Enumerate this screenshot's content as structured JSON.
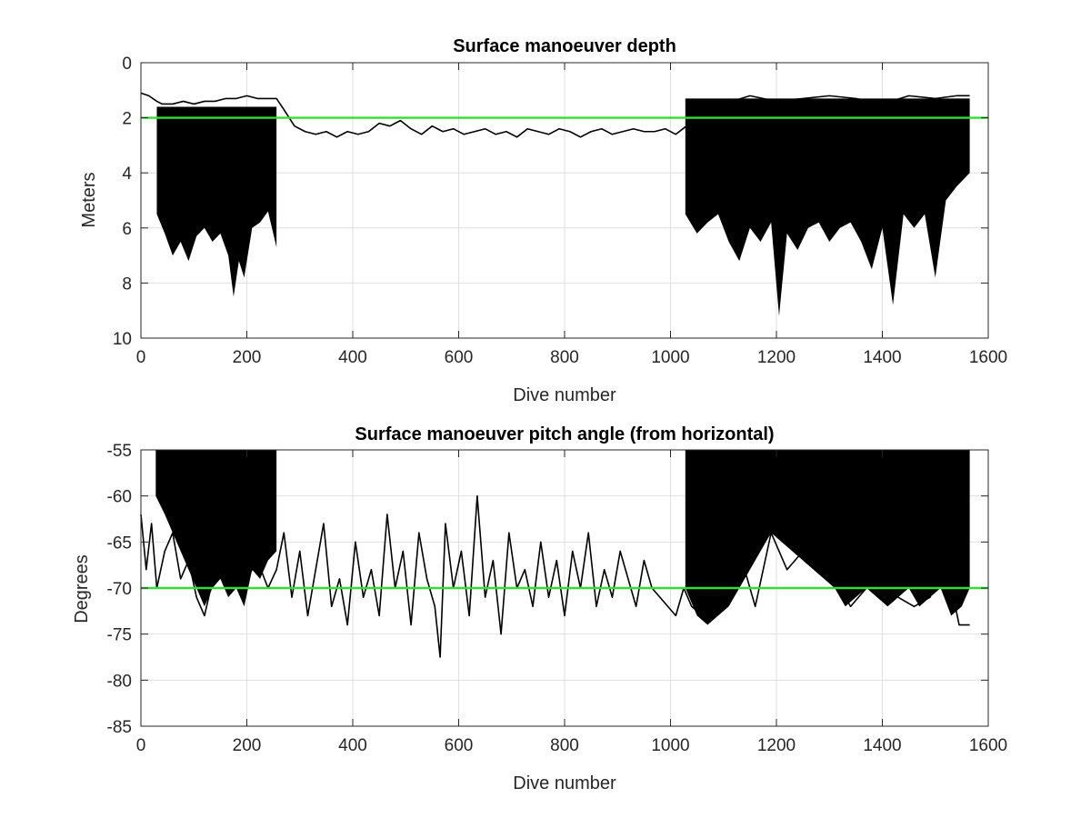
{
  "colors": {
    "reference_line": "#33dd33",
    "signal": "#000000",
    "grid": "#dfdfdf"
  },
  "chart_data": [
    {
      "type": "line",
      "title": "Surface manoeuver depth",
      "xlabel": "Dive number",
      "ylabel": "Meters",
      "xlim": [
        0,
        1600
      ],
      "ylim": [
        0,
        10
      ],
      "y_reversed": true,
      "grid": true,
      "xticks": [
        "0",
        "200",
        "400",
        "600",
        "800",
        "1000",
        "1200",
        "1400",
        "1600"
      ],
      "yticks": [
        "0",
        "2",
        "4",
        "6",
        "8",
        "10"
      ],
      "reference_line": {
        "y": 2.0,
        "color": "#33dd33"
      },
      "series": [
        {
          "x": [
            0,
            15,
            30,
            40,
            60,
            80,
            100,
            120,
            140,
            160,
            180,
            200,
            220,
            240,
            256,
            270,
            290,
            310,
            330,
            350,
            370,
            390,
            410,
            430,
            450,
            470,
            490,
            510,
            530,
            550,
            570,
            590,
            610,
            630,
            650,
            670,
            690,
            710,
            730,
            750,
            770,
            790,
            810,
            830,
            850,
            870,
            890,
            910,
            930,
            950,
            970,
            990,
            1010,
            1030,
            1060,
            1100,
            1150,
            1200,
            1250,
            1300,
            1350,
            1400,
            1450,
            1500,
            1540,
            1565
          ],
          "values": [
            1.1,
            1.2,
            1.4,
            1.5,
            1.5,
            1.4,
            1.5,
            1.4,
            1.4,
            1.3,
            1.3,
            1.2,
            1.3,
            1.3,
            1.3,
            1.7,
            2.3,
            2.5,
            2.6,
            2.5,
            2.7,
            2.5,
            2.6,
            2.5,
            2.2,
            2.3,
            2.1,
            2.4,
            2.6,
            2.3,
            2.5,
            2.4,
            2.6,
            2.5,
            2.4,
            2.6,
            2.5,
            2.7,
            2.4,
            2.5,
            2.6,
            2.4,
            2.5,
            2.7,
            2.5,
            2.4,
            2.6,
            2.5,
            2.4,
            2.5,
            2.5,
            2.4,
            2.6,
            2.3,
            1.8,
            1.5,
            1.2,
            1.4,
            1.3,
            1.2,
            1.3,
            1.5,
            1.2,
            1.3,
            1.2,
            1.2
          ]
        }
      ],
      "bands": [
        {
          "x_range": [
            30,
            256
          ],
          "upper": 1.6,
          "lower_envelope": {
            "x": [
              30,
              45,
              60,
              75,
              90,
              105,
              120,
              135,
              150,
              165,
              175,
              185,
              195,
              210,
              225,
              240,
              256
            ],
            "values": [
              5.5,
              6.2,
              7.0,
              6.5,
              7.2,
              6.3,
              6.0,
              6.5,
              6.2,
              7.0,
              8.5,
              7.2,
              7.8,
              6.0,
              5.8,
              5.4,
              6.7
            ]
          }
        },
        {
          "x_range": [
            1028,
            1565
          ],
          "upper": 1.3,
          "lower_envelope": {
            "x": [
              1028,
              1050,
              1070,
              1090,
              1110,
              1130,
              1150,
              1170,
              1190,
              1205,
              1220,
              1240,
              1260,
              1280,
              1300,
              1320,
              1340,
              1360,
              1380,
              1400,
              1420,
              1440,
              1460,
              1480,
              1500,
              1520,
              1540,
              1565
            ],
            "values": [
              5.5,
              6.2,
              5.8,
              5.5,
              6.5,
              7.2,
              6.0,
              6.5,
              5.8,
              9.2,
              6.2,
              6.8,
              6.0,
              5.8,
              6.5,
              6.0,
              5.8,
              6.5,
              7.5,
              6.0,
              8.8,
              5.5,
              6.0,
              5.5,
              7.8,
              5.0,
              4.5,
              4.0
            ]
          }
        }
      ]
    },
    {
      "type": "line",
      "title": "Surface manoeuver pitch angle (from horizontal)",
      "xlabel": "Dive number",
      "ylabel": "Degrees",
      "xlim": [
        0,
        1600
      ],
      "ylim": [
        -85,
        -55
      ],
      "grid": true,
      "xticks": [
        "0",
        "200",
        "400",
        "600",
        "800",
        "1000",
        "1200",
        "1400",
        "1600"
      ],
      "yticks": [
        "-55",
        "-60",
        "-65",
        "-70",
        "-75",
        "-80",
        "-85"
      ],
      "reference_line": {
        "y": -70,
        "color": "#33dd33"
      },
      "series": [
        {
          "x": [
            0,
            10,
            20,
            30,
            45,
            60,
            75,
            90,
            105,
            120,
            140,
            160,
            180,
            200,
            220,
            240,
            256,
            270,
            285,
            300,
            315,
            330,
            345,
            360,
            375,
            390,
            405,
            420,
            435,
            450,
            465,
            480,
            495,
            510,
            525,
            540,
            555,
            565,
            575,
            590,
            605,
            620,
            635,
            650,
            665,
            680,
            695,
            710,
            725,
            740,
            755,
            770,
            785,
            800,
            815,
            830,
            845,
            860,
            875,
            890,
            905,
            920,
            935,
            950,
            965,
            980,
            995,
            1010,
            1025,
            1040,
            1060,
            1080,
            1100,
            1130,
            1160,
            1190,
            1220,
            1250,
            1280,
            1310,
            1340,
            1370,
            1400,
            1430,
            1460,
            1490,
            1520,
            1545,
            1565
          ],
          "values": [
            -62,
            -68,
            -63,
            -70,
            -66,
            -64,
            -69,
            -67,
            -71,
            -73,
            -68,
            -66,
            -70,
            -69,
            -67,
            -70,
            -68,
            -64,
            -71,
            -66,
            -73,
            -68,
            -63,
            -72,
            -69,
            -74,
            -65,
            -71,
            -68,
            -73,
            -62,
            -70,
            -66,
            -74,
            -64,
            -69,
            -72,
            -77.5,
            -63,
            -70,
            -66,
            -73,
            -60,
            -71,
            -67,
            -75,
            -64,
            -70,
            -68,
            -72,
            -65,
            -71,
            -67,
            -73,
            -66,
            -70,
            -64,
            -72,
            -68,
            -71,
            -66,
            -69,
            -72,
            -67,
            -70,
            -71,
            -72,
            -73,
            -70,
            -72,
            -73,
            -71,
            -68,
            -66,
            -72,
            -64,
            -68,
            -66,
            -67,
            -69,
            -72,
            -70,
            -66,
            -71,
            -72,
            -71,
            -67,
            -74,
            -74
          ]
        }
      ],
      "bands": [
        {
          "x_range": [
            28,
            256
          ],
          "upper": -55,
          "lower_envelope": {
            "x": [
              28,
              45,
              60,
              75,
              90,
              105,
              120,
              135,
              150,
              165,
              180,
              195,
              210,
              225,
              240,
              256
            ],
            "values": [
              -60,
              -62,
              -64,
              -66,
              -68,
              -70,
              -72,
              -70,
              -69,
              -71,
              -70,
              -72,
              -68,
              -69,
              -67,
              -66
            ]
          }
        },
        {
          "x_range": [
            1028,
            1565
          ],
          "upper": -55,
          "lower_envelope": {
            "x": [
              1028,
              1050,
              1070,
              1090,
              1110,
              1130,
              1150,
              1170,
              1190,
              1210,
              1230,
              1250,
              1270,
              1290,
              1310,
              1330,
              1350,
              1370,
              1390,
              1410,
              1430,
              1450,
              1470,
              1490,
              1510,
              1530,
              1550,
              1565
            ],
            "values": [
              -70,
              -73,
              -74,
              -73,
              -72,
              -70,
              -68,
              -66,
              -64,
              -65,
              -66,
              -67,
              -68,
              -69,
              -70,
              -72,
              -71,
              -70,
              -71,
              -72,
              -71,
              -70,
              -72,
              -71,
              -70,
              -73,
              -72,
              -70
            ]
          }
        }
      ]
    }
  ]
}
